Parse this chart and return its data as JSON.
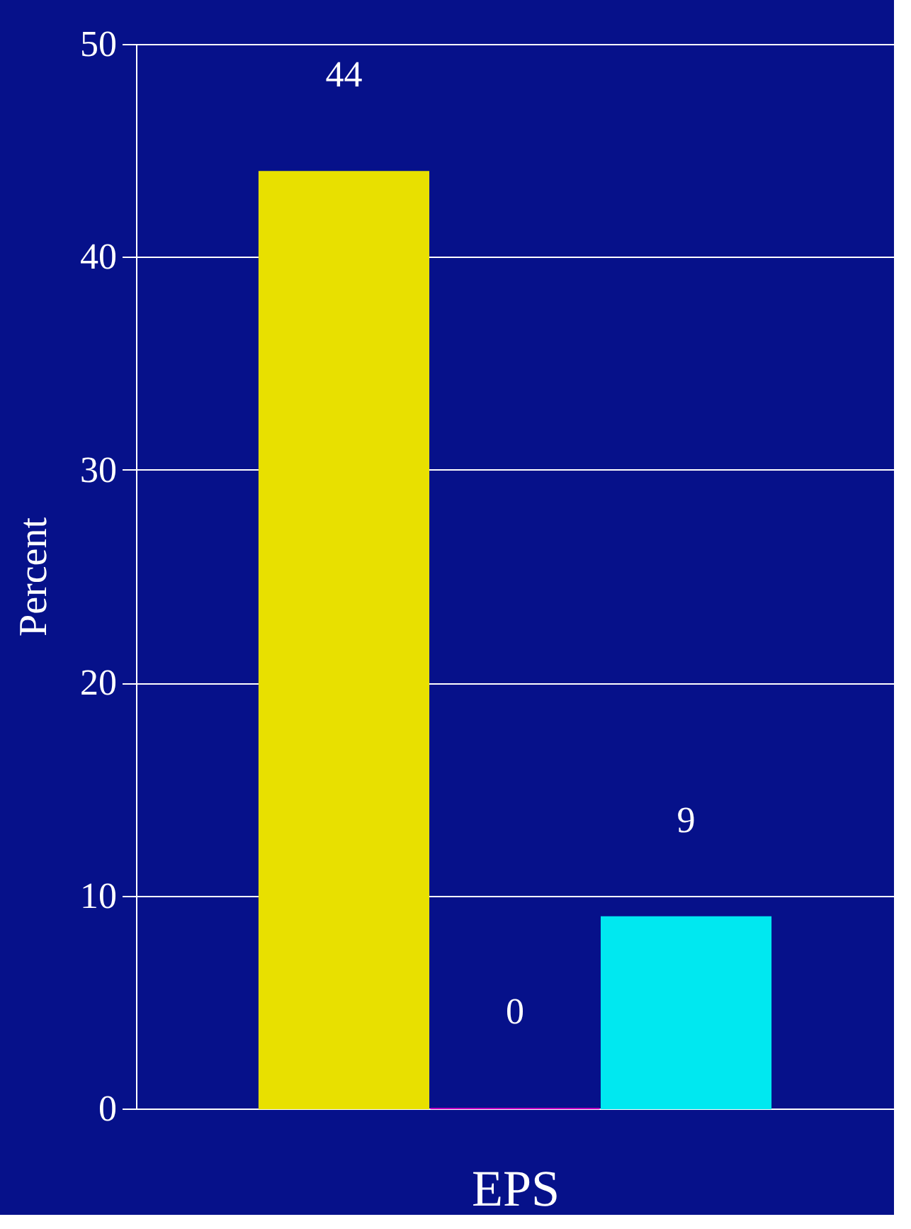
{
  "chart_data": {
    "type": "bar",
    "xlabel": "EPS",
    "ylabel": "Percent",
    "categories": [
      null,
      null,
      null
    ],
    "values": [
      44,
      0,
      9
    ],
    "colors": [
      "#e8e000",
      "#c000c0",
      "#00e8f0"
    ],
    "ylim": [
      0,
      50
    ],
    "yticks": [
      0,
      10,
      20,
      30,
      40,
      50
    ],
    "grid": "y",
    "data_labels": true
  }
}
